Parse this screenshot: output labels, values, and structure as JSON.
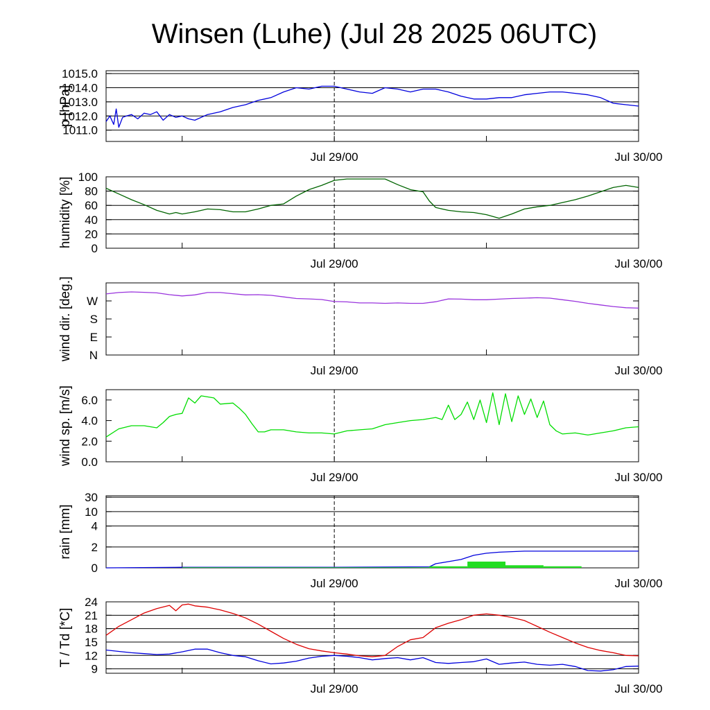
{
  "title": "Winsen (Luhe) (Jul 28 2025 06UTC)",
  "x_axis": {
    "range_hours": [
      0,
      42
    ],
    "tick_labels": [
      {
        "label": "Jul 29/00",
        "hour": 18
      },
      {
        "label": "Jul 30/00",
        "hour": 42
      }
    ],
    "minor_ticks_hours": [
      6,
      18,
      30,
      42
    ],
    "dashed_marker_hour": 18
  },
  "chart_data": [
    {
      "id": "pressure",
      "type": "line",
      "ylabel": "p [hPa]",
      "ylim": [
        1010.2,
        1015.2
      ],
      "yticks": [
        1011.0,
        1012.0,
        1013.0,
        1014.0,
        1015.0
      ],
      "yticklabels": [
        "1011.0",
        "1012.0",
        "1013.0",
        "1014.0",
        "1015.0"
      ],
      "gridlines": [
        1011,
        1012,
        1013,
        1014,
        1015
      ],
      "series": [
        {
          "color": "#0000dd",
          "x": [
            0,
            0.3,
            0.6,
            0.8,
            1.0,
            1.3,
            1.6,
            2.0,
            2.5,
            3.0,
            3.5,
            4.0,
            4.5,
            5.0,
            5.5,
            6.0,
            6.5,
            7.0,
            8.0,
            9.0,
            10.0,
            11.0,
            12.0,
            13.0,
            14.0,
            15.0,
            16.0,
            17.0,
            18.0,
            19.0,
            20.0,
            21.0,
            22.0,
            23.0,
            24.0,
            25.0,
            26.0,
            27.0,
            28.0,
            29.0,
            30.0,
            31.0,
            32.0,
            33.0,
            34.0,
            35.0,
            36.0,
            37.0,
            38.0,
            39.0,
            40.0,
            41.0,
            42.0
          ],
          "y": [
            1011.6,
            1012.0,
            1011.4,
            1012.5,
            1011.2,
            1011.9,
            1012.0,
            1012.1,
            1011.8,
            1012.2,
            1012.1,
            1012.3,
            1011.7,
            1012.1,
            1011.9,
            1012.0,
            1011.8,
            1011.7,
            1012.1,
            1012.3,
            1012.6,
            1012.8,
            1013.1,
            1013.3,
            1013.7,
            1014.0,
            1013.9,
            1014.1,
            1014.1,
            1013.9,
            1013.7,
            1013.6,
            1014.0,
            1013.9,
            1013.7,
            1013.9,
            1013.9,
            1013.7,
            1013.4,
            1013.2,
            1013.2,
            1013.3,
            1013.3,
            1013.5,
            1013.6,
            1013.7,
            1013.7,
            1013.6,
            1013.5,
            1013.3,
            1012.9,
            1012.8,
            1012.7
          ]
        }
      ]
    },
    {
      "id": "humidity",
      "type": "line",
      "ylabel": "humidity [%]",
      "ylim": [
        0,
        100
      ],
      "yticks": [
        0,
        20,
        40,
        60,
        80,
        100
      ],
      "yticklabels": [
        "0",
        "20",
        "40",
        "60",
        "80",
        "100"
      ],
      "gridlines": [
        20,
        40,
        60,
        80,
        100
      ],
      "series": [
        {
          "color": "#006400",
          "x": [
            0,
            1,
            2,
            3,
            4,
            5,
            5.5,
            6,
            7,
            8,
            9,
            10,
            11,
            12,
            13,
            14,
            15,
            16,
            17,
            18,
            19,
            20,
            21,
            22,
            23,
            24,
            25,
            25.5,
            26,
            27,
            28,
            29,
            30,
            31,
            32,
            33,
            34,
            35,
            36,
            37,
            38,
            39,
            40,
            41,
            42
          ],
          "y": [
            84,
            76,
            68,
            61,
            53,
            48,
            50,
            48,
            51,
            55,
            54,
            51,
            51,
            55,
            60,
            62,
            73,
            82,
            88,
            95,
            97,
            97,
            97,
            97,
            89,
            82,
            79,
            66,
            57,
            53,
            51,
            50,
            47,
            42,
            48,
            55,
            58,
            60,
            64,
            68,
            73,
            79,
            85,
            88,
            85
          ]
        }
      ]
    },
    {
      "id": "wind_dir",
      "type": "line",
      "ylabel": "wind dir. [deg.]",
      "ylim": [
        0,
        360
      ],
      "yticks": [
        0,
        90,
        180,
        270
      ],
      "yticklabels": [
        "N",
        "E",
        "S",
        "W"
      ],
      "gridlines": [],
      "series": [
        {
          "color": "#9933dd",
          "x": [
            0,
            1,
            2,
            3,
            4,
            5,
            6,
            7,
            8,
            9,
            10,
            11,
            12,
            13,
            14,
            15,
            16,
            17,
            18,
            19,
            20,
            21,
            22,
            23,
            24,
            25,
            26,
            27,
            28,
            29,
            30,
            31,
            32,
            33,
            34,
            35,
            36,
            37,
            38,
            39,
            40,
            41,
            42
          ],
          "y": [
            305,
            312,
            315,
            313,
            310,
            301,
            295,
            300,
            312,
            312,
            306,
            300,
            301,
            298,
            290,
            282,
            280,
            277,
            267,
            265,
            260,
            260,
            258,
            260,
            258,
            258,
            266,
            280,
            279,
            276,
            276,
            279,
            282,
            284,
            286,
            284,
            276,
            268,
            258,
            250,
            242,
            236,
            234
          ]
        }
      ]
    },
    {
      "id": "wind_speed",
      "type": "line",
      "ylabel": "wind sp. [m/s]",
      "ylim": [
        0,
        7
      ],
      "yticks": [
        0,
        2,
        4,
        6
      ],
      "yticklabels": [
        "0.0",
        "2.0",
        "4.0",
        "6.0"
      ],
      "gridlines": [],
      "series": [
        {
          "color": "#00dd00",
          "x": [
            0,
            1,
            2,
            3,
            4,
            4.5,
            5,
            5.5,
            6,
            6.5,
            7,
            7.5,
            8,
            8.5,
            9,
            10,
            10.5,
            11,
            11.5,
            12,
            12.5,
            13,
            14,
            15,
            16,
            17,
            18,
            19,
            20,
            21,
            22,
            23,
            24,
            25,
            25.5,
            26,
            26.5,
            27,
            27.5,
            28,
            28.5,
            29,
            29.5,
            30,
            30.5,
            31,
            31.5,
            32,
            32.5,
            33,
            33.5,
            34,
            34.5,
            35,
            35.5,
            36,
            37,
            38,
            39,
            40,
            41,
            42
          ],
          "y": [
            2.4,
            3.2,
            3.5,
            3.5,
            3.3,
            3.8,
            4.4,
            4.6,
            4.7,
            6.2,
            5.7,
            6.4,
            6.3,
            6.2,
            5.6,
            5.7,
            5.2,
            4.6,
            3.7,
            2.9,
            2.9,
            3.1,
            3.1,
            2.9,
            2.8,
            2.8,
            2.7,
            3.0,
            3.1,
            3.2,
            3.6,
            3.8,
            4.0,
            4.1,
            4.2,
            4.3,
            4.1,
            5.5,
            4.1,
            4.6,
            5.8,
            4.1,
            6.0,
            3.8,
            6.7,
            3.6,
            6.6,
            3.9,
            6.4,
            4.6,
            6.1,
            4.3,
            5.9,
            3.6,
            3.0,
            2.7,
            2.8,
            2.6,
            2.8,
            3.0,
            3.3,
            3.4
          ]
        }
      ]
    },
    {
      "id": "rain",
      "type": "line",
      "ylabel": "rain [mm]",
      "ylim_note": "nonlinear axis",
      "yticks": [
        0,
        2,
        4,
        10,
        30
      ],
      "yticklabels": [
        "0",
        "2",
        "4",
        "10",
        "30"
      ],
      "gridlines": [
        2,
        4,
        10,
        30
      ],
      "series": [
        {
          "name": "",
          "color": "#0000dd",
          "x": [
            0,
            6,
            18,
            25.5,
            26,
            27,
            28,
            29,
            30,
            31,
            33,
            36,
            39,
            42
          ],
          "y": [
            0,
            0.05,
            0.05,
            0.1,
            0.4,
            0.6,
            0.8,
            1.2,
            1.4,
            1.5,
            1.6,
            1.6,
            1.6,
            1.6
          ]
        },
        {
          "name": "",
          "color": "#22dd22",
          "type": "bar",
          "x": [
            6,
            25.5,
            28.5,
            31.5,
            34.5,
            37.5
          ],
          "widths": [
            19.5,
            3,
            3,
            3,
            3,
            0
          ],
          "y": [
            0.05,
            0.15,
            0.6,
            0.25,
            0.15,
            0
          ]
        }
      ]
    },
    {
      "id": "temperature",
      "type": "line",
      "ylabel": "T / Td [*C]",
      "ylim": [
        8,
        24
      ],
      "yticks": [
        9,
        12,
        15,
        18,
        21,
        24
      ],
      "yticklabels": [
        "9",
        "12",
        "15",
        "18",
        "21",
        "24"
      ],
      "gridlines": [
        9,
        12,
        15,
        18,
        21,
        24
      ],
      "series": [
        {
          "color": "#dd0000",
          "x": [
            0,
            1,
            2,
            3,
            4,
            5,
            5.5,
            6,
            6.5,
            7,
            8,
            9,
            10,
            11,
            12,
            13,
            14,
            15,
            16,
            17,
            18,
            19,
            20,
            21,
            22,
            23,
            24,
            25,
            26,
            27,
            28,
            29,
            30,
            31,
            32,
            33,
            34,
            35,
            36,
            37,
            38,
            39,
            40,
            41,
            42
          ],
          "y": [
            16.5,
            18.5,
            20.0,
            21.5,
            22.5,
            23.2,
            22.0,
            23.3,
            23.5,
            23.1,
            22.8,
            22.2,
            21.4,
            20.4,
            19.0,
            17.4,
            15.8,
            14.5,
            13.5,
            13.0,
            12.6,
            12.3,
            11.9,
            11.7,
            12.0,
            14.0,
            15.5,
            16.0,
            18.2,
            19.2,
            20.0,
            21.0,
            21.3,
            21.0,
            20.5,
            19.8,
            18.5,
            17.2,
            16.0,
            14.8,
            13.8,
            13.1,
            12.6,
            12.0,
            11.9
          ]
        },
        {
          "color": "#0000dd",
          "x": [
            0,
            1,
            2,
            3,
            4,
            5,
            6,
            7,
            8,
            9,
            10,
            11,
            12,
            13,
            14,
            15,
            16,
            17,
            18,
            19,
            20,
            21,
            22,
            23,
            24,
            25,
            26,
            27,
            28,
            29,
            30,
            31,
            32,
            33,
            34,
            35,
            36,
            37,
            38,
            39,
            40,
            41,
            42
          ],
          "y": [
            13.2,
            12.9,
            12.6,
            12.4,
            12.2,
            12.3,
            12.8,
            13.4,
            13.4,
            12.6,
            12.0,
            11.7,
            10.8,
            10.1,
            10.3,
            10.7,
            11.4,
            11.8,
            12.0,
            11.8,
            11.5,
            11.0,
            11.3,
            11.5,
            11.0,
            11.5,
            10.4,
            10.2,
            10.4,
            10.6,
            11.2,
            10.0,
            10.3,
            10.5,
            10.0,
            9.8,
            10.0,
            9.5,
            8.6,
            8.5,
            8.8,
            9.5,
            9.6
          ]
        }
      ]
    }
  ]
}
